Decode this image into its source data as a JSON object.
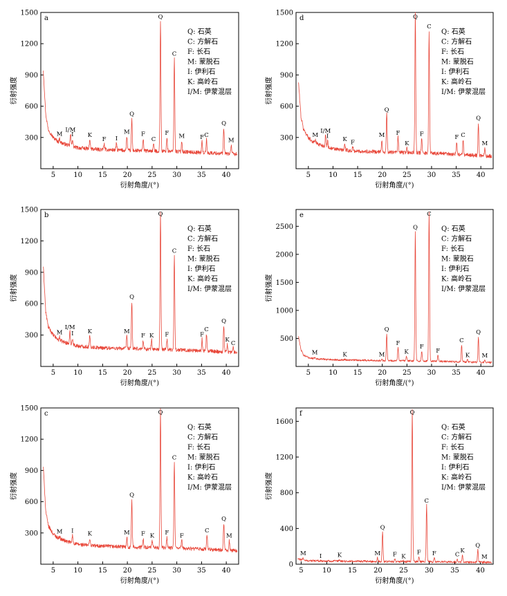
{
  "figure": {
    "legend_lines": [
      "Q: 石英",
      "C: 方解石",
      "F: 长石",
      "M: 蒙脱石",
      "I: 伊利石",
      "K: 高岭石",
      "I/M: 伊蒙混层"
    ],
    "trace_color": "#e8473a"
  },
  "chart_data": [
    {
      "id": "a",
      "type": "line",
      "panel_label": "a",
      "xlabel": "衍射角度/(°)",
      "ylabel": "衍射强度",
      "xlim": [
        2.5,
        42.5
      ],
      "ylim": [
        0,
        1500
      ],
      "xticks": [
        5,
        10,
        15,
        20,
        25,
        30,
        35,
        40
      ],
      "yticks": [
        300,
        600,
        900,
        1200,
        1500
      ],
      "baseline": [
        [
          3,
          950
        ],
        [
          3.5,
          520
        ],
        [
          4,
          380
        ],
        [
          5,
          300
        ],
        [
          6,
          260
        ],
        [
          8,
          225
        ],
        [
          10,
          200
        ],
        [
          14,
          185
        ],
        [
          20,
          175
        ],
        [
          30,
          165
        ],
        [
          42,
          140
        ]
      ],
      "noise": 18,
      "peaks": [
        {
          "label": "M",
          "x": 6.3,
          "y": 290
        },
        {
          "label": "I/M",
          "x": 8.5,
          "y": 330
        },
        {
          "label": "I",
          "x": 8.9,
          "y": 285
        },
        {
          "label": "K",
          "x": 12.4,
          "y": 280
        },
        {
          "label": "F",
          "x": 15.3,
          "y": 240
        },
        {
          "label": "I",
          "x": 17.8,
          "y": 245
        },
        {
          "label": "M",
          "x": 19.9,
          "y": 310
        },
        {
          "label": "Q",
          "x": 20.9,
          "y": 480
        },
        {
          "label": "F",
          "x": 23.2,
          "y": 290
        },
        {
          "label": "C",
          "x": 25.3,
          "y": 240
        },
        {
          "label": "Q",
          "x": 26.7,
          "y": 1430
        },
        {
          "label": "F",
          "x": 28.0,
          "y": 300
        },
        {
          "label": "C",
          "x": 29.5,
          "y": 1060
        },
        {
          "label": "M",
          "x": 31.0,
          "y": 270
        },
        {
          "label": "F",
          "x": 35.1,
          "y": 260
        },
        {
          "label": "C",
          "x": 36.0,
          "y": 280
        },
        {
          "label": "Q",
          "x": 39.5,
          "y": 390
        },
        {
          "label": "M",
          "x": 41.0,
          "y": 230
        }
      ]
    },
    {
      "id": "b",
      "type": "line",
      "panel_label": "b",
      "xlabel": "衍射角度/(°)",
      "ylabel": "衍射强度",
      "xlim": [
        2.5,
        42.5
      ],
      "ylim": [
        0,
        1500
      ],
      "xticks": [
        5,
        10,
        15,
        20,
        25,
        30,
        35,
        40
      ],
      "yticks": [
        300,
        600,
        900,
        1200,
        1500
      ],
      "baseline": [
        [
          3,
          960
        ],
        [
          3.5,
          520
        ],
        [
          4,
          380
        ],
        [
          5,
          300
        ],
        [
          6,
          255
        ],
        [
          8,
          220
        ],
        [
          10,
          195
        ],
        [
          14,
          180
        ],
        [
          20,
          170
        ],
        [
          30,
          160
        ],
        [
          42,
          135
        ]
      ],
      "noise": 18,
      "peaks": [
        {
          "label": "M",
          "x": 6.3,
          "y": 280
        },
        {
          "label": "I/M",
          "x": 8.4,
          "y": 330
        },
        {
          "label": "I",
          "x": 8.9,
          "y": 270
        },
        {
          "label": "K",
          "x": 12.4,
          "y": 290
        },
        {
          "label": "M",
          "x": 19.9,
          "y": 290
        },
        {
          "label": "Q",
          "x": 20.9,
          "y": 620
        },
        {
          "label": "F",
          "x": 23.2,
          "y": 250
        },
        {
          "label": "K",
          "x": 24.9,
          "y": 250
        },
        {
          "label": "Q",
          "x": 26.7,
          "y": 1460
        },
        {
          "label": "F",
          "x": 28.0,
          "y": 260
        },
        {
          "label": "C",
          "x": 29.5,
          "y": 1060
        },
        {
          "label": "F",
          "x": 35.1,
          "y": 260
        },
        {
          "label": "C",
          "x": 36.0,
          "y": 310
        },
        {
          "label": "Q",
          "x": 39.5,
          "y": 390
        },
        {
          "label": "K",
          "x": 40.2,
          "y": 210
        },
        {
          "label": "C",
          "x": 41.4,
          "y": 180
        }
      ]
    },
    {
      "id": "c",
      "type": "line",
      "panel_label": "c",
      "xlabel": "衍射角度/(°)",
      "ylabel": "衍射强度",
      "xlim": [
        2.5,
        42.5
      ],
      "ylim": [
        0,
        1500
      ],
      "xticks": [
        5,
        10,
        15,
        20,
        25,
        30,
        35,
        40
      ],
      "yticks": [
        300,
        600,
        900,
        1200,
        1500
      ],
      "baseline": [
        [
          3,
          940
        ],
        [
          3.5,
          510
        ],
        [
          4,
          370
        ],
        [
          5,
          290
        ],
        [
          6,
          250
        ],
        [
          8,
          215
        ],
        [
          10,
          190
        ],
        [
          14,
          175
        ],
        [
          20,
          165
        ],
        [
          30,
          155
        ],
        [
          42,
          130
        ]
      ],
      "noise": 18,
      "peaks": [
        {
          "label": "M",
          "x": 6.3,
          "y": 270
        },
        {
          "label": "I",
          "x": 8.9,
          "y": 275
        },
        {
          "label": "K",
          "x": 12.4,
          "y": 250
        },
        {
          "label": "M",
          "x": 19.9,
          "y": 260
        },
        {
          "label": "Q",
          "x": 20.9,
          "y": 620
        },
        {
          "label": "F",
          "x": 23.2,
          "y": 250
        },
        {
          "label": "K",
          "x": 25.0,
          "y": 230
        },
        {
          "label": "Q",
          "x": 26.7,
          "y": 1480
        },
        {
          "label": "F",
          "x": 28.0,
          "y": 260
        },
        {
          "label": "C",
          "x": 29.5,
          "y": 980
        },
        {
          "label": "F",
          "x": 31.0,
          "y": 230
        },
        {
          "label": "C",
          "x": 36.1,
          "y": 280
        },
        {
          "label": "Q",
          "x": 39.5,
          "y": 390
        },
        {
          "label": "M",
          "x": 40.6,
          "y": 230
        }
      ]
    },
    {
      "id": "d",
      "type": "line",
      "panel_label": "d",
      "xlabel": "衍射角度/(°)",
      "ylabel": "衍射强度",
      "xlim": [
        2.5,
        42.5
      ],
      "ylim": [
        0,
        1500
      ],
      "xticks": [
        5,
        10,
        15,
        20,
        25,
        30,
        35,
        40
      ],
      "yticks": [
        300,
        600,
        900,
        1200,
        1500
      ],
      "baseline": [
        [
          3,
          830
        ],
        [
          3.5,
          500
        ],
        [
          4,
          380
        ],
        [
          5,
          300
        ],
        [
          6,
          255
        ],
        [
          8,
          220
        ],
        [
          10,
          190
        ],
        [
          14,
          170
        ],
        [
          20,
          160
        ],
        [
          30,
          150
        ],
        [
          42,
          120
        ]
      ],
      "noise": 18,
      "peaks": [
        {
          "label": "M",
          "x": 6.4,
          "y": 280
        },
        {
          "label": "I/M",
          "x": 8.5,
          "y": 320
        },
        {
          "label": "I",
          "x": 8.9,
          "y": 270
        },
        {
          "label": "K",
          "x": 12.4,
          "y": 240
        },
        {
          "label": "F",
          "x": 14.0,
          "y": 210
        },
        {
          "label": "M",
          "x": 19.9,
          "y": 280
        },
        {
          "label": "Q",
          "x": 20.9,
          "y": 520
        },
        {
          "label": "F",
          "x": 23.2,
          "y": 300
        },
        {
          "label": "K",
          "x": 25.0,
          "y": 200
        },
        {
          "label": "Q",
          "x": 26.7,
          "y": 1490
        },
        {
          "label": "F",
          "x": 28.0,
          "y": 290
        },
        {
          "label": "C",
          "x": 29.5,
          "y": 1320
        },
        {
          "label": "F",
          "x": 35.1,
          "y": 260
        },
        {
          "label": "C",
          "x": 36.4,
          "y": 280
        },
        {
          "label": "Q",
          "x": 39.5,
          "y": 440
        },
        {
          "label": "M",
          "x": 40.8,
          "y": 200
        }
      ]
    },
    {
      "id": "e",
      "type": "line",
      "panel_label": "e",
      "xlabel": "衍射角度/(°)",
      "ylabel": "衍射强度",
      "xlim": [
        2.5,
        42.5
      ],
      "ylim": [
        0,
        2800
      ],
      "xticks": [
        5,
        10,
        15,
        20,
        25,
        30,
        35,
        40
      ],
      "yticks": [
        500,
        1000,
        1500,
        2000,
        2500
      ],
      "baseline": [
        [
          3,
          540
        ],
        [
          3.5,
          300
        ],
        [
          4,
          200
        ],
        [
          5,
          160
        ],
        [
          6,
          140
        ],
        [
          10,
          120
        ],
        [
          20,
          105
        ],
        [
          30,
          95
        ],
        [
          42,
          70
        ]
      ],
      "noise": 16,
      "peaks": [
        {
          "label": "M",
          "x": 6.3,
          "y": 165
        },
        {
          "label": "K",
          "x": 12.4,
          "y": 130
        },
        {
          "label": "M",
          "x": 19.9,
          "y": 130
        },
        {
          "label": "Q",
          "x": 20.9,
          "y": 580
        },
        {
          "label": "F",
          "x": 23.2,
          "y": 330
        },
        {
          "label": "K",
          "x": 24.9,
          "y": 180
        },
        {
          "label": "Q",
          "x": 26.7,
          "y": 2400
        },
        {
          "label": "F",
          "x": 28.0,
          "y": 270
        },
        {
          "label": "C",
          "x": 29.5,
          "y": 2760
        },
        {
          "label": "F",
          "x": 31.3,
          "y": 200
        },
        {
          "label": "C",
          "x": 36.1,
          "y": 380
        },
        {
          "label": "K",
          "x": 37.3,
          "y": 120
        },
        {
          "label": "Q",
          "x": 39.5,
          "y": 530
        },
        {
          "label": "M",
          "x": 40.8,
          "y": 110
        }
      ]
    },
    {
      "id": "f",
      "type": "line",
      "panel_label": "f",
      "xlabel": "衍射角度/(°)",
      "ylabel": "衍射强度",
      "xlim": [
        4,
        42.5
      ],
      "ylim": [
        0,
        1750
      ],
      "xticks": [
        5,
        10,
        15,
        20,
        25,
        30,
        35,
        40
      ],
      "yticks": [
        0,
        400,
        800,
        1200,
        1600
      ],
      "baseline": [
        [
          4.2,
          60
        ],
        [
          5,
          50
        ],
        [
          6,
          40
        ],
        [
          10,
          35
        ],
        [
          20,
          30
        ],
        [
          30,
          28
        ],
        [
          42,
          20
        ]
      ],
      "noise": 12,
      "peaks": [
        {
          "label": "M",
          "x": 5.4,
          "y": 70
        },
        {
          "label": "I",
          "x": 8.8,
          "y": 40
        },
        {
          "label": "K",
          "x": 12.5,
          "y": 50
        },
        {
          "label": "M",
          "x": 19.9,
          "y": 70
        },
        {
          "label": "Q",
          "x": 20.9,
          "y": 360
        },
        {
          "label": "F",
          "x": 23.3,
          "y": 60
        },
        {
          "label": "K",
          "x": 25.0,
          "y": 35
        },
        {
          "label": "Q",
          "x": 26.7,
          "y": 1740
        },
        {
          "label": "F",
          "x": 28.0,
          "y": 80
        },
        {
          "label": "C",
          "x": 29.5,
          "y": 660
        },
        {
          "label": "F",
          "x": 31.0,
          "y": 70
        },
        {
          "label": "C",
          "x": 35.5,
          "y": 60
        },
        {
          "label": "K",
          "x": 36.5,
          "y": 100
        },
        {
          "label": "Q",
          "x": 39.5,
          "y": 160
        },
        {
          "label": "M",
          "x": 40.8,
          "y": 30
        }
      ]
    }
  ]
}
